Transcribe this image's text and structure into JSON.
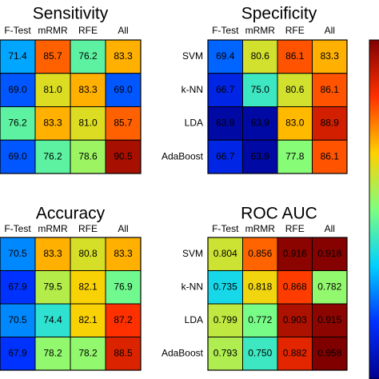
{
  "chart_data": [
    {
      "type": "heatmap",
      "title": "Sensitivity",
      "columns": [
        "F-Test",
        "mRMR",
        "RFE",
        "All"
      ],
      "rows": [
        "M",
        "NN",
        "DA",
        "oost"
      ],
      "values": [
        [
          71.4,
          85.7,
          76.2,
          83.3
        ],
        [
          69.0,
          81.0,
          83.3,
          69.0
        ],
        [
          76.2,
          83.3,
          81.0,
          85.7
        ],
        [
          69.0,
          76.2,
          78.6,
          90.5
        ]
      ],
      "labels": [
        [
          "71.4",
          "85.7",
          "76.2",
          "83.3"
        ],
        [
          "69.0",
          "81.0",
          "83.3",
          "69.0"
        ],
        [
          "76.2",
          "83.3",
          "81.0",
          "85.7"
        ],
        [
          "69.0",
          "76.2",
          "78.6",
          "90.5"
        ]
      ],
      "color_range": [
        63,
        92
      ]
    },
    {
      "type": "heatmap",
      "title": "Specificity",
      "columns": [
        "F-Test",
        "mRMR",
        "RFE",
        "All"
      ],
      "rows": [
        "SVM",
        "k-NN",
        "LDA",
        "AdaBoost"
      ],
      "values": [
        [
          69.4,
          80.6,
          86.1,
          83.3
        ],
        [
          66.7,
          75.0,
          80.6,
          86.1
        ],
        [
          63.9,
          63.9,
          83.0,
          88.9
        ],
        [
          66.7,
          63.9,
          77.8,
          86.1
        ]
      ],
      "labels": [
        [
          "69.4",
          "80.6",
          "86.1",
          "83.3"
        ],
        [
          "66.7",
          "75.0",
          "80.6",
          "86.1"
        ],
        [
          "63.9",
          "63.9",
          "83.0",
          "88.9"
        ],
        [
          "66.7",
          "63.9",
          "77.8",
          "86.1"
        ]
      ],
      "color_range": [
        63,
        92
      ]
    },
    {
      "type": "heatmap",
      "title": "Accuracy",
      "columns": [
        "F-Test",
        "mRMR",
        "RFE",
        "All"
      ],
      "rows": [
        "M",
        "IN",
        "DA",
        "oost"
      ],
      "values": [
        [
          70.5,
          83.3,
          80.8,
          83.3
        ],
        [
          67.9,
          79.5,
          82.1,
          76.9
        ],
        [
          70.5,
          74.4,
          82.1,
          87.2
        ],
        [
          67.9,
          78.2,
          78.2,
          88.5
        ]
      ],
      "labels": [
        [
          "70.5",
          "83.3",
          "80.8",
          "83.3"
        ],
        [
          "67.9",
          "79.5",
          "82.1",
          "76.9"
        ],
        [
          "70.5",
          "74.4",
          "82.1",
          "87.2"
        ],
        [
          "67.9",
          "78.2",
          "78.2",
          "88.5"
        ]
      ],
      "color_range": [
        63,
        92
      ]
    },
    {
      "type": "heatmap",
      "title": "ROC AUC",
      "columns": [
        "F-Test",
        "mRMR",
        "RFE",
        "All"
      ],
      "rows": [
        "SVM",
        "k-NN",
        "LDA",
        "AdaBoost"
      ],
      "values": [
        [
          0.804,
          0.856,
          0.916,
          0.918
        ],
        [
          0.735,
          0.818,
          0.868,
          0.782
        ],
        [
          0.799,
          0.772,
          0.903,
          0.915
        ],
        [
          0.793,
          0.75,
          0.882,
          0.958
        ]
      ],
      "labels": [
        [
          "0.804",
          "0.856",
          "0.916",
          "0.918"
        ],
        [
          "0.735",
          "0.818",
          "0.868",
          "0.782"
        ],
        [
          "0.799",
          "0.772",
          "0.903",
          "0.915"
        ],
        [
          "0.793",
          "0.750",
          "0.882",
          "0.958"
        ]
      ],
      "color_range": [
        0.63,
        0.92
      ]
    }
  ],
  "colorscale": [
    "#00008f",
    "#0030ff",
    "#00d0ff",
    "#7fff7f",
    "#ffd000",
    "#ff3000",
    "#800000"
  ]
}
